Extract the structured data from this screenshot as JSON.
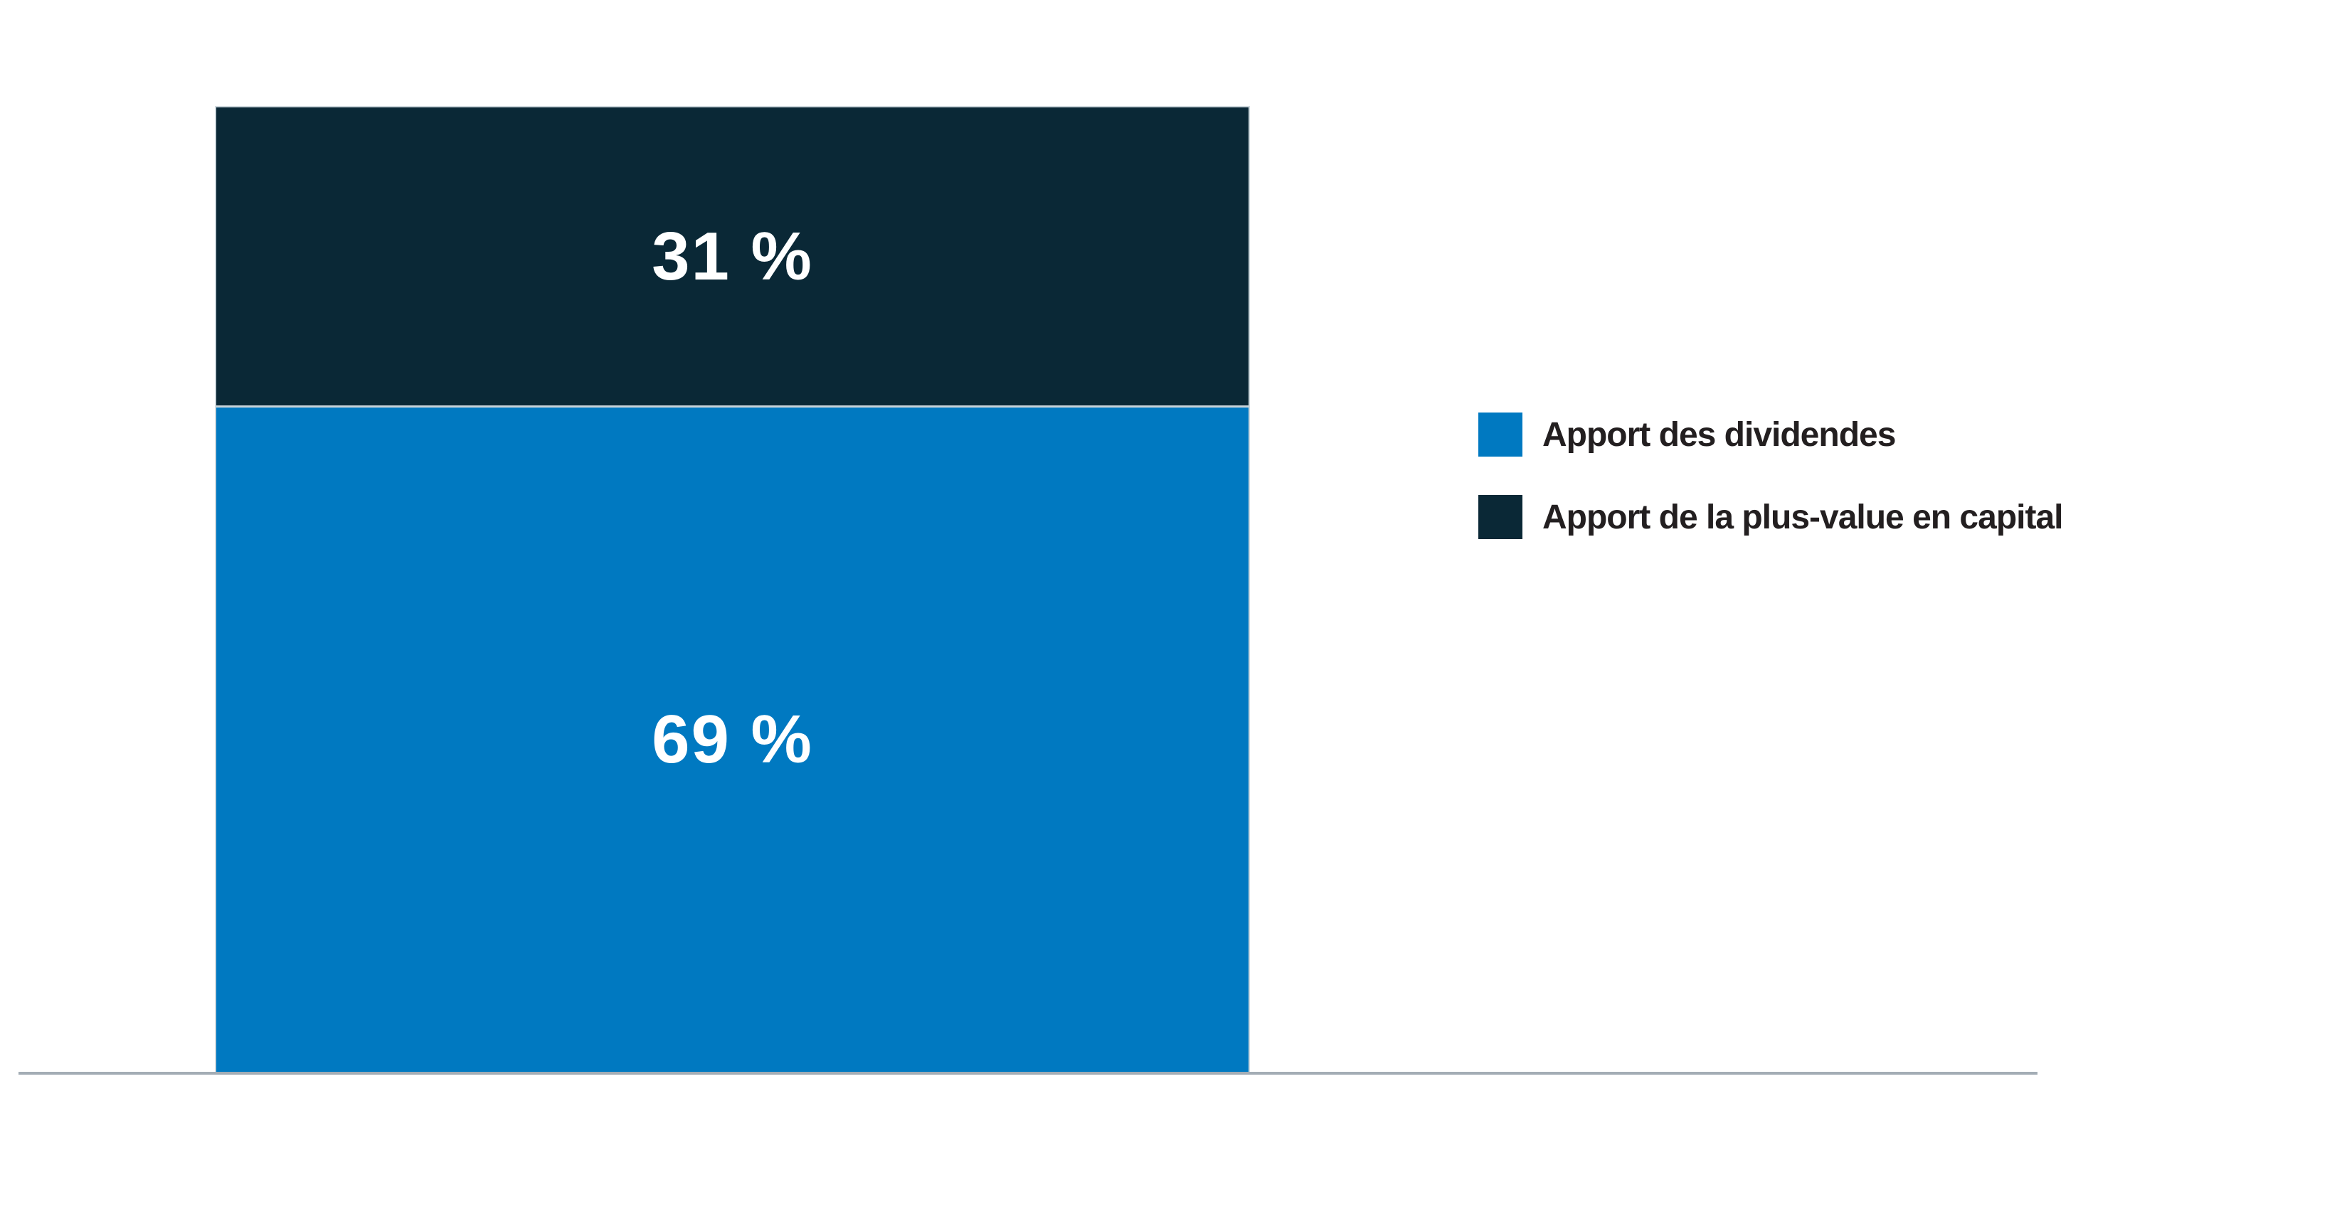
{
  "chart_data": {
    "type": "bar",
    "stacked": true,
    "orientation": "vertical",
    "title": "",
    "xlabel": "",
    "ylabel": "",
    "ylim": [
      0,
      100
    ],
    "unit": "%",
    "grid": false,
    "legend_position": "right",
    "segment_order": "top-to-bottom",
    "series": [
      {
        "name": "Apport de la plus-value en capital",
        "value": 31,
        "label": "31 %",
        "color": "#0A2836"
      },
      {
        "name": "Apport des dividendes",
        "value": 69,
        "label": "69 %",
        "color": "#0079C1"
      }
    ]
  },
  "legend": {
    "items": [
      {
        "label": "Apport des dividendes",
        "color": "#0079C1"
      },
      {
        "label": "Apport de la plus-value en capital",
        "color": "#0A2836"
      }
    ]
  },
  "colors": {
    "dividends_blue": "#0079C1",
    "capital_gain_navy": "#0A2836",
    "baseline_gray": "#A3ADB5",
    "segment_separator": "#C9D4DA",
    "value_label_text": "#FFFFFF",
    "legend_text": "#231F20",
    "background": "#FFFFFF"
  }
}
